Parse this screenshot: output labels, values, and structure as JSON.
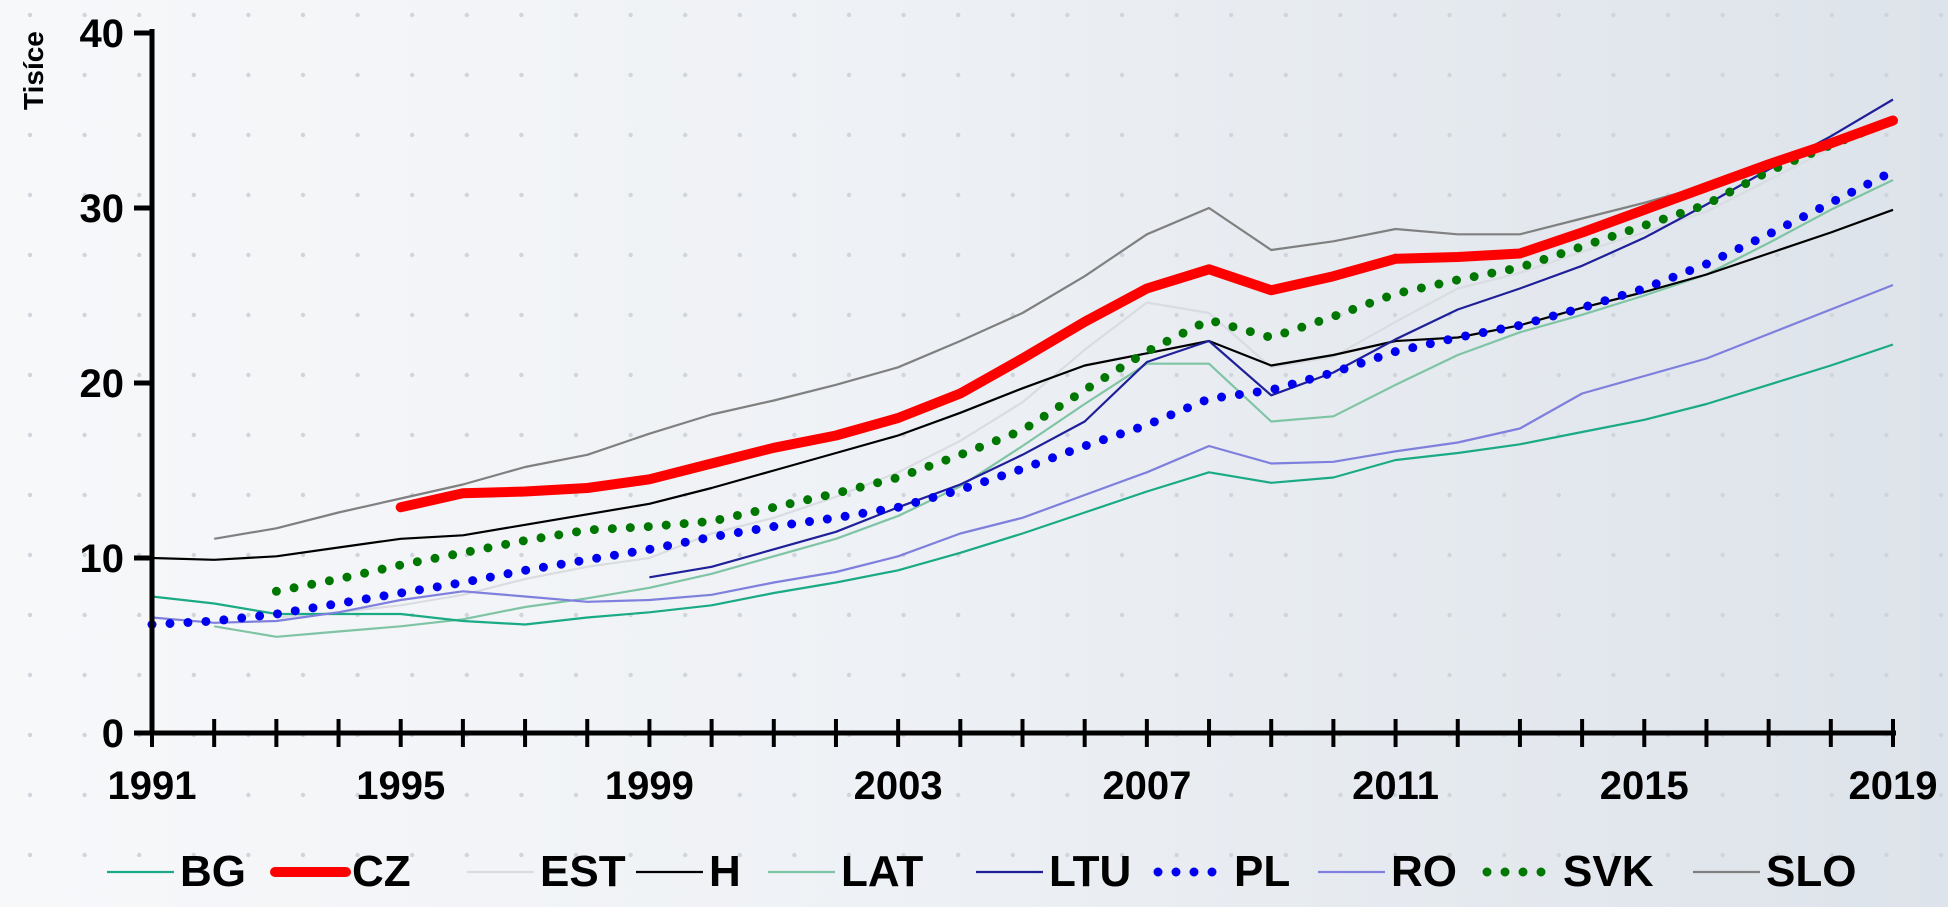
{
  "chart_data": {
    "type": "line",
    "ylabel": "Tisíce",
    "xlabel": "",
    "ylim": [
      0,
      40
    ],
    "xlim": [
      1991,
      2019
    ],
    "yticks": [
      0,
      10,
      20,
      30,
      40
    ],
    "xtick_labels": [
      1991,
      1995,
      1999,
      2003,
      2007,
      2011,
      2015,
      2019
    ],
    "background_grid": "dotted",
    "legend_placement": "bottom",
    "series": [
      {
        "name": "BG",
        "color": "#1aaa85",
        "style": "solid-thin",
        "points": [
          [
            1991,
            7.8
          ],
          [
            1992,
            7.4
          ],
          [
            1993,
            6.8
          ],
          [
            1994,
            6.8
          ],
          [
            1995,
            6.8
          ],
          [
            1996,
            6.4
          ],
          [
            1997,
            6.2
          ],
          [
            1998,
            6.6
          ],
          [
            1999,
            6.9
          ],
          [
            2000,
            7.3
          ],
          [
            2001,
            8.0
          ],
          [
            2002,
            8.6
          ],
          [
            2003,
            9.3
          ],
          [
            2004,
            10.3
          ],
          [
            2005,
            11.4
          ],
          [
            2006,
            12.6
          ],
          [
            2007,
            13.8
          ],
          [
            2008,
            14.9
          ],
          [
            2009,
            14.3
          ],
          [
            2010,
            14.6
          ],
          [
            2011,
            15.6
          ],
          [
            2012,
            16.0
          ],
          [
            2013,
            16.5
          ],
          [
            2014,
            17.2
          ],
          [
            2015,
            17.9
          ],
          [
            2016,
            18.8
          ],
          [
            2017,
            19.9
          ],
          [
            2018,
            21.0
          ],
          [
            2019,
            22.2
          ]
        ]
      },
      {
        "name": "CZ",
        "color": "#ff0000",
        "style": "solid-thick",
        "points": [
          [
            1995,
            12.9
          ],
          [
            1996,
            13.7
          ],
          [
            1997,
            13.8
          ],
          [
            1998,
            14.0
          ],
          [
            1999,
            14.5
          ],
          [
            2000,
            15.4
          ],
          [
            2001,
            16.3
          ],
          [
            2002,
            17.0
          ],
          [
            2003,
            18.0
          ],
          [
            2004,
            19.4
          ],
          [
            2005,
            21.4
          ],
          [
            2006,
            23.5
          ],
          [
            2007,
            25.4
          ],
          [
            2008,
            26.5
          ],
          [
            2009,
            25.3
          ],
          [
            2010,
            26.1
          ],
          [
            2011,
            27.1
          ],
          [
            2012,
            27.2
          ],
          [
            2013,
            27.4
          ],
          [
            2014,
            28.6
          ],
          [
            2015,
            29.9
          ],
          [
            2016,
            31.2
          ],
          [
            2017,
            32.5
          ],
          [
            2018,
            33.7
          ],
          [
            2019,
            35.0
          ]
        ]
      },
      {
        "name": "EST",
        "color": "#d9dde2",
        "style": "solid-thin",
        "points": [
          [
            1993,
            6.6
          ],
          [
            1994,
            6.9
          ],
          [
            1995,
            7.3
          ],
          [
            1996,
            7.9
          ],
          [
            1997,
            8.8
          ],
          [
            1998,
            9.5
          ],
          [
            1999,
            10.0
          ],
          [
            2000,
            11.4
          ],
          [
            2001,
            12.3
          ],
          [
            2002,
            13.5
          ],
          [
            2003,
            14.9
          ],
          [
            2004,
            16.7
          ],
          [
            2005,
            18.9
          ],
          [
            2006,
            21.9
          ],
          [
            2007,
            24.6
          ],
          [
            2008,
            24.0
          ],
          [
            2009,
            20.9
          ],
          [
            2010,
            21.5
          ],
          [
            2011,
            23.5
          ],
          [
            2012,
            25.4
          ],
          [
            2013,
            26.3
          ],
          [
            2014,
            27.5
          ],
          [
            2015,
            28.6
          ],
          [
            2016,
            29.8
          ],
          [
            2017,
            31.6
          ],
          [
            2018,
            33.4
          ],
          [
            2019,
            35.1
          ]
        ]
      },
      {
        "name": "H",
        "color": "#000000",
        "style": "solid-thin",
        "points": [
          [
            1991,
            10.0
          ],
          [
            1992,
            9.9
          ],
          [
            1993,
            10.1
          ],
          [
            1994,
            10.6
          ],
          [
            1995,
            11.1
          ],
          [
            1996,
            11.3
          ],
          [
            1997,
            11.9
          ],
          [
            1998,
            12.5
          ],
          [
            1999,
            13.1
          ],
          [
            2000,
            14.0
          ],
          [
            2001,
            15.0
          ],
          [
            2002,
            16.0
          ],
          [
            2003,
            17.0
          ],
          [
            2004,
            18.3
          ],
          [
            2005,
            19.7
          ],
          [
            2006,
            21.0
          ],
          [
            2007,
            21.7
          ],
          [
            2008,
            22.4
          ],
          [
            2009,
            21.0
          ],
          [
            2010,
            21.6
          ],
          [
            2011,
            22.4
          ],
          [
            2012,
            22.6
          ],
          [
            2013,
            23.3
          ],
          [
            2014,
            24.3
          ],
          [
            2015,
            25.2
          ],
          [
            2016,
            26.2
          ],
          [
            2017,
            27.4
          ],
          [
            2018,
            28.6
          ],
          [
            2019,
            29.9
          ]
        ]
      },
      {
        "name": "LAT",
        "color": "#7fc4a4",
        "style": "solid-thin",
        "points": [
          [
            1992,
            6.1
          ],
          [
            1993,
            5.5
          ],
          [
            1994,
            5.8
          ],
          [
            1995,
            6.1
          ],
          [
            1996,
            6.5
          ],
          [
            1997,
            7.2
          ],
          [
            1998,
            7.7
          ],
          [
            1999,
            8.3
          ],
          [
            2000,
            9.1
          ],
          [
            2001,
            10.1
          ],
          [
            2002,
            11.1
          ],
          [
            2003,
            12.4
          ],
          [
            2004,
            14.1
          ],
          [
            2005,
            16.4
          ],
          [
            2006,
            18.8
          ],
          [
            2007,
            21.1
          ],
          [
            2008,
            21.1
          ],
          [
            2009,
            17.8
          ],
          [
            2010,
            18.1
          ],
          [
            2011,
            19.9
          ],
          [
            2012,
            21.6
          ],
          [
            2013,
            22.9
          ],
          [
            2014,
            23.9
          ],
          [
            2015,
            25.0
          ],
          [
            2016,
            26.2
          ],
          [
            2017,
            28.0
          ],
          [
            2018,
            29.9
          ],
          [
            2019,
            31.6
          ]
        ]
      },
      {
        "name": "LTU",
        "color": "#1f1f99",
        "style": "solid-thin",
        "points": [
          [
            1999,
            8.9
          ],
          [
            2000,
            9.5
          ],
          [
            2001,
            10.5
          ],
          [
            2002,
            11.5
          ],
          [
            2003,
            12.9
          ],
          [
            2004,
            14.2
          ],
          [
            2005,
            15.9
          ],
          [
            2006,
            17.8
          ],
          [
            2007,
            21.2
          ],
          [
            2008,
            22.4
          ],
          [
            2009,
            19.3
          ],
          [
            2010,
            20.6
          ],
          [
            2011,
            22.5
          ],
          [
            2012,
            24.2
          ],
          [
            2013,
            25.4
          ],
          [
            2014,
            26.7
          ],
          [
            2015,
            28.3
          ],
          [
            2016,
            30.2
          ],
          [
            2017,
            32.2
          ],
          [
            2018,
            34.1
          ],
          [
            2019,
            36.2
          ]
        ]
      },
      {
        "name": "PL",
        "color": "#0000ee",
        "style": "dotted",
        "points": [
          [
            1991,
            6.2
          ],
          [
            1992,
            6.4
          ],
          [
            1993,
            6.8
          ],
          [
            1994,
            7.4
          ],
          [
            1995,
            8.0
          ],
          [
            1996,
            8.6
          ],
          [
            1997,
            9.3
          ],
          [
            1998,
            9.9
          ],
          [
            1999,
            10.5
          ],
          [
            2000,
            11.2
          ],
          [
            2001,
            11.8
          ],
          [
            2002,
            12.3
          ],
          [
            2003,
            12.9
          ],
          [
            2004,
            13.9
          ],
          [
            2005,
            15.1
          ],
          [
            2006,
            16.4
          ],
          [
            2007,
            17.6
          ],
          [
            2008,
            19.1
          ],
          [
            2009,
            19.6
          ],
          [
            2010,
            20.6
          ],
          [
            2011,
            21.8
          ],
          [
            2012,
            22.6
          ],
          [
            2013,
            23.3
          ],
          [
            2014,
            24.3
          ],
          [
            2015,
            25.4
          ],
          [
            2016,
            26.8
          ],
          [
            2017,
            28.5
          ],
          [
            2018,
            30.3
          ],
          [
            2019,
            32.1
          ]
        ]
      },
      {
        "name": "RO",
        "color": "#7f7fdd",
        "style": "solid-thin",
        "points": [
          [
            1991,
            6.6
          ],
          [
            1992,
            6.3
          ],
          [
            1993,
            6.4
          ],
          [
            1994,
            6.9
          ],
          [
            1995,
            7.6
          ],
          [
            1996,
            8.1
          ],
          [
            1997,
            7.8
          ],
          [
            1998,
            7.5
          ],
          [
            1999,
            7.6
          ],
          [
            2000,
            7.9
          ],
          [
            2001,
            8.6
          ],
          [
            2002,
            9.2
          ],
          [
            2003,
            10.1
          ],
          [
            2004,
            11.4
          ],
          [
            2005,
            12.3
          ],
          [
            2006,
            13.6
          ],
          [
            2007,
            14.9
          ],
          [
            2008,
            16.4
          ],
          [
            2009,
            15.4
          ],
          [
            2010,
            15.5
          ],
          [
            2011,
            16.1
          ],
          [
            2012,
            16.6
          ],
          [
            2013,
            17.4
          ],
          [
            2014,
            19.4
          ],
          [
            2015,
            20.4
          ],
          [
            2016,
            21.4
          ],
          [
            2017,
            22.8
          ],
          [
            2018,
            24.2
          ],
          [
            2019,
            25.6
          ]
        ]
      },
      {
        "name": "SVK",
        "color": "#007700",
        "style": "dotted",
        "points": [
          [
            1993,
            8.1
          ],
          [
            1994,
            8.8
          ],
          [
            1995,
            9.6
          ],
          [
            1996,
            10.3
          ],
          [
            1997,
            11.0
          ],
          [
            1998,
            11.6
          ],
          [
            1999,
            11.8
          ],
          [
            2000,
            12.1
          ],
          [
            2001,
            12.9
          ],
          [
            2002,
            13.7
          ],
          [
            2003,
            14.6
          ],
          [
            2004,
            15.9
          ],
          [
            2005,
            17.3
          ],
          [
            2006,
            19.6
          ],
          [
            2007,
            21.8
          ],
          [
            2008,
            23.6
          ],
          [
            2009,
            22.6
          ],
          [
            2010,
            23.8
          ],
          [
            2011,
            25.1
          ],
          [
            2012,
            25.9
          ],
          [
            2013,
            26.6
          ],
          [
            2014,
            27.8
          ],
          [
            2015,
            29.0
          ],
          [
            2016,
            30.2
          ],
          [
            2017,
            32.1
          ],
          [
            2018,
            33.6
          ],
          [
            2019,
            35.0
          ]
        ]
      },
      {
        "name": "SLO",
        "color": "#808080",
        "style": "solid-thin",
        "points": [
          [
            1992,
            11.1
          ],
          [
            1993,
            11.7
          ],
          [
            1994,
            12.6
          ],
          [
            1995,
            13.4
          ],
          [
            1996,
            14.2
          ],
          [
            1997,
            15.2
          ],
          [
            1998,
            15.9
          ],
          [
            1999,
            17.1
          ],
          [
            2000,
            18.2
          ],
          [
            2001,
            19.0
          ],
          [
            2002,
            19.9
          ],
          [
            2003,
            20.9
          ],
          [
            2004,
            22.4
          ],
          [
            2005,
            24.0
          ],
          [
            2006,
            26.1
          ],
          [
            2007,
            28.5
          ],
          [
            2008,
            30.0
          ],
          [
            2009,
            27.6
          ],
          [
            2010,
            28.1
          ],
          [
            2011,
            28.8
          ],
          [
            2012,
            28.5
          ],
          [
            2013,
            28.5
          ],
          [
            2014,
            29.4
          ],
          [
            2015,
            30.3
          ],
          [
            2016,
            31.3
          ],
          [
            2017,
            32.4
          ],
          [
            2018,
            33.7
          ],
          [
            2019,
            35.0
          ]
        ]
      }
    ]
  }
}
